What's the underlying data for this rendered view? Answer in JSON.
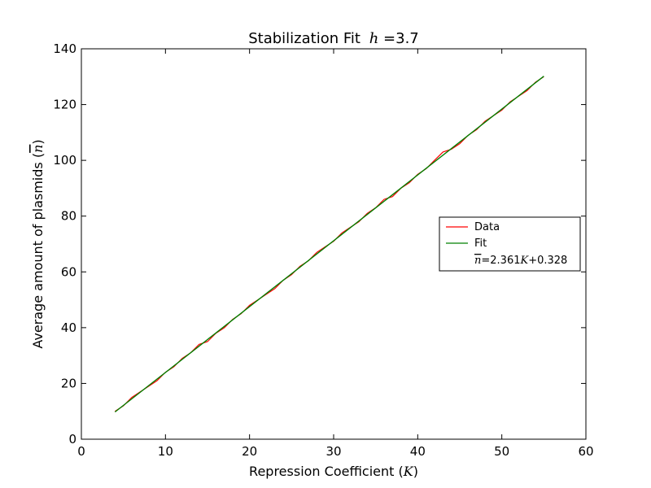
{
  "chart_data": {
    "type": "line",
    "title": "Stabilization Fit",
    "title_math": "h",
    "title_value": "=3.7",
    "xlabel": "Repression Coefficient (",
    "xlabel_math": "K",
    "xlabel_end": ")",
    "ylabel": "Average amount of plasmids (",
    "ylabel_math": "n",
    "ylabel_end": ")",
    "xlim": [
      0,
      60
    ],
    "ylim": [
      0,
      140
    ],
    "xticks": [
      0,
      10,
      20,
      30,
      40,
      50,
      60
    ],
    "yticks": [
      0,
      20,
      40,
      60,
      80,
      100,
      120,
      140
    ],
    "grid": false,
    "legend_position": "center-right",
    "legend": {
      "data_label": "Data",
      "fit_label": "Fit",
      "equation_prefix": "n",
      "equation_middle": "=2.361",
      "equation_k": "K",
      "equation_suffix": "+0.328"
    },
    "series": [
      {
        "name": "Data",
        "color": "#ff0000",
        "x": [
          4,
          5,
          6,
          7,
          8,
          9,
          10,
          11,
          12,
          13,
          14,
          15,
          16,
          17,
          18,
          19,
          20,
          21,
          22,
          23,
          24,
          25,
          26,
          27,
          28,
          29,
          30,
          31,
          32,
          33,
          34,
          35,
          36,
          37,
          38,
          39,
          40,
          41,
          42,
          43,
          44,
          45,
          46,
          47,
          48,
          49,
          50,
          51,
          52,
          53,
          54,
          55
        ],
        "values": [
          10,
          12,
          15,
          17,
          19,
          21,
          24,
          26,
          29,
          31,
          34,
          35,
          38,
          40,
          43,
          45,
          48,
          50,
          52,
          54,
          57,
          59,
          62,
          64,
          67,
          69,
          71,
          74,
          76,
          78,
          81,
          83,
          86,
          87,
          90,
          92,
          95,
          97,
          100,
          103,
          104,
          106,
          109,
          111,
          114,
          116,
          118,
          121,
          123,
          125,
          128,
          130
        ]
      },
      {
        "name": "Fit",
        "color": "#008000",
        "slope": 2.361,
        "intercept": 0.328,
        "x_range": [
          4,
          55
        ]
      }
    ]
  }
}
